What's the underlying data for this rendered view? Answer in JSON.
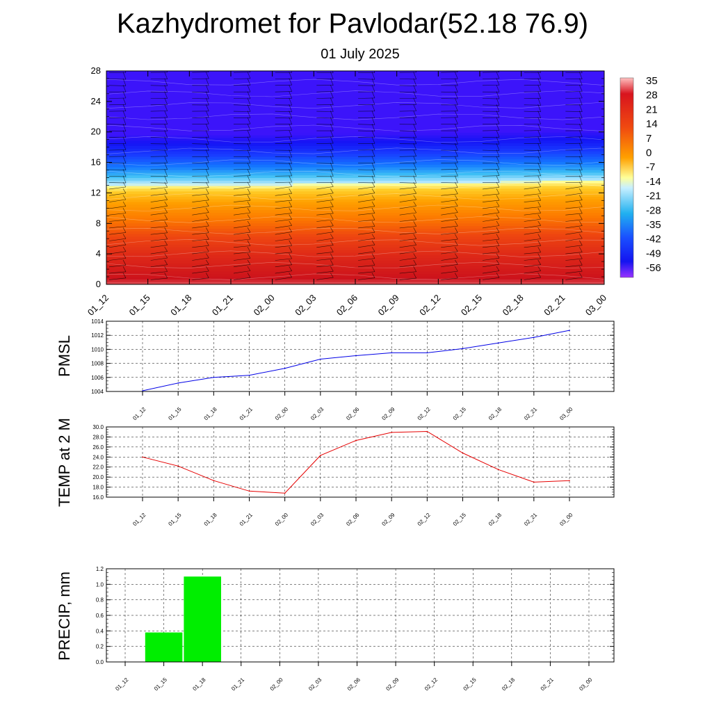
{
  "title": "Kazhydromet for Pavlodar(52.18 76.9)",
  "subtitle": "01 July 2025",
  "time_labels": [
    "01_12",
    "01_15",
    "01_18",
    "01_21",
    "02_00",
    "02_03",
    "02_06",
    "02_09",
    "02_12",
    "02_15",
    "02_18",
    "02_21",
    "03_00"
  ],
  "chart_data": [
    {
      "type": "heatmap",
      "description_label": "",
      "x": [
        "01_12",
        "01_15",
        "01_18",
        "01_21",
        "02_00",
        "02_03",
        "02_06",
        "02_09",
        "02_12",
        "02_15",
        "02_18",
        "02_21",
        "03_00"
      ],
      "yticks": [
        0,
        4,
        8,
        12,
        16,
        20,
        24,
        28
      ],
      "ylim": [
        0,
        28
      ],
      "colorbar_labels": [
        "35",
        "28",
        "21",
        "14",
        "7",
        "0",
        "-7",
        "-14",
        "-21",
        "-28",
        "-35",
        "-42",
        "-49",
        "-56"
      ],
      "colorbar_range": [
        -60,
        38
      ],
      "freezing_level_km": [
        12.9,
        13.0,
        13.0,
        13.0,
        13.0,
        13.1,
        13.1,
        13.2,
        13.2,
        13.3,
        13.4,
        13.5,
        13.5
      ],
      "overlay": "wind barbs",
      "colors": {
        "hot": "#c8121e",
        "warm": "#ff9a00",
        "neutral": "#ffff99",
        "cold": "#1a3cff",
        "coldest": "#9933ff"
      }
    },
    {
      "type": "line",
      "ylabel": "PMSL",
      "x": [
        "01_12",
        "01_15",
        "01_18",
        "01_21",
        "02_00",
        "02_03",
        "02_06",
        "02_09",
        "02_12",
        "02_15",
        "02_18",
        "02_21",
        "03_00"
      ],
      "values": [
        1004.1,
        1005.2,
        1006.0,
        1006.3,
        1007.3,
        1008.6,
        1009.1,
        1009.5,
        1009.5,
        1010.1,
        1010.9,
        1011.7,
        1012.7
      ],
      "ylim": [
        1004,
        1014
      ],
      "yticks": [
        "1004",
        "1006",
        "1008",
        "1010",
        "1012",
        "1014"
      ],
      "line_color": "#0000e6",
      "grid": true
    },
    {
      "type": "line",
      "ylabel": "TEMP at 2 M",
      "x": [
        "01_12",
        "01_15",
        "01_18",
        "01_21",
        "02_00",
        "02_03",
        "02_06",
        "02_09",
        "02_12",
        "02_15",
        "02_18",
        "02_21",
        "03_00"
      ],
      "values": [
        24.0,
        22.2,
        19.3,
        17.2,
        16.8,
        24.3,
        27.3,
        28.9,
        29.1,
        24.8,
        21.5,
        19.0,
        19.3
      ],
      "ylim": [
        16,
        30
      ],
      "yticks": [
        "16.0",
        "18.0",
        "20.0",
        "22.0",
        "24.0",
        "26.0",
        "28.0",
        "30.0"
      ],
      "line_color": "#e60000",
      "grid": true
    },
    {
      "type": "bar",
      "ylabel": "PRECIP, mm",
      "categories": [
        "01_12",
        "01_15",
        "01_18",
        "01_21",
        "02_00",
        "02_03",
        "02_06",
        "02_09",
        "02_12",
        "02_15",
        "02_18",
        "02_21",
        "03_00"
      ],
      "values": [
        0,
        0.38,
        1.1,
        0,
        0,
        0,
        0,
        0,
        0,
        0,
        0,
        0,
        0
      ],
      "ylim": [
        0,
        1.2
      ],
      "yticks": [
        "0.0",
        "0.2",
        "0.4",
        "0.6",
        "0.8",
        "1.0",
        "1.2"
      ],
      "bar_color": "#00ee00",
      "grid": true
    }
  ]
}
